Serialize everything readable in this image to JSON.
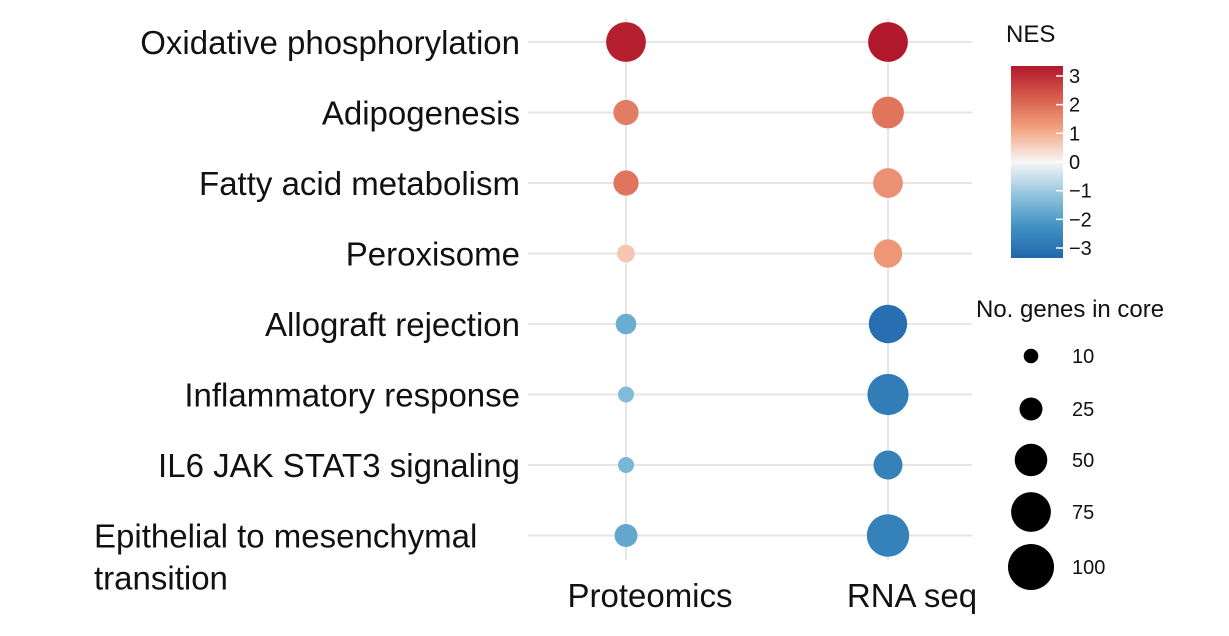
{
  "chart_data": {
    "type": "dot",
    "categories": [
      "Oxidative phosphorylation",
      "Adipogenesis",
      "Fatty acid metabolism",
      "Peroxisome",
      "Allograft rejection",
      "Inflammatory response",
      "IL6 JAK STAT3 signaling",
      "Epithelial to mesenchymal transition"
    ],
    "category_lines": [
      [
        "Oxidative phosphorylation"
      ],
      [
        "Adipogenesis"
      ],
      [
        "Fatty acid metabolism"
      ],
      [
        "Peroxisome"
      ],
      [
        "Allograft rejection"
      ],
      [
        "Inflammatory response"
      ],
      [
        "IL6 JAK STAT3 signaling"
      ],
      [
        "Epithelial to mesenchymal",
        "transition"
      ]
    ],
    "columns": [
      "Proteomics",
      "RNA seq"
    ],
    "series": [
      {
        "name": "Proteomics",
        "nes": [
          2.9,
          1.6,
          1.7,
          0.6,
          -1.5,
          -1.2,
          -1.3,
          -1.6
        ],
        "genes": [
          75,
          30,
          30,
          15,
          20,
          12,
          12,
          25
        ]
      },
      {
        "name": "RNA seq",
        "nes": [
          3.0,
          1.7,
          1.3,
          1.2,
          -2.8,
          -2.5,
          -2.4,
          -2.4
        ],
        "genes": [
          75,
          48,
          42,
          38,
          70,
          80,
          40,
          85
        ]
      }
    ],
    "color_legend": {
      "title": "NES",
      "min": -3,
      "max": 3,
      "ticks": [
        3,
        2,
        1,
        0,
        -1,
        -2,
        -3
      ],
      "tick_labels": [
        "3",
        "2",
        "1",
        "0",
        "−1",
        "−2",
        "−3"
      ]
    },
    "size_legend": {
      "title": "No. genes in core",
      "values": [
        10,
        25,
        50,
        75,
        100
      ],
      "labels": [
        "10",
        "25",
        "50",
        "75",
        "100"
      ]
    },
    "grid": true,
    "legend_position": "right"
  }
}
